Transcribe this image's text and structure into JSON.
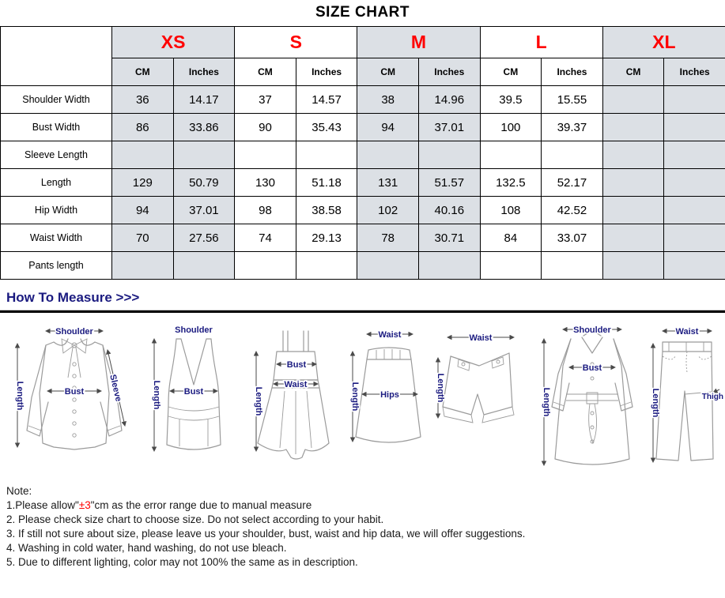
{
  "title": "SIZE CHART",
  "size_table": {
    "sizes": [
      "XS",
      "S",
      "M",
      "L",
      "XL"
    ],
    "shaded": [
      true,
      false,
      true,
      false,
      true
    ],
    "unit_headers": [
      "CM",
      "Inches"
    ],
    "rows": [
      {
        "label": "Shoulder Width",
        "values": [
          "36",
          "14.17",
          "37",
          "14.57",
          "38",
          "14.96",
          "39.5",
          "15.55",
          "",
          ""
        ]
      },
      {
        "label": "Bust Width",
        "values": [
          "86",
          "33.86",
          "90",
          "35.43",
          "94",
          "37.01",
          "100",
          "39.37",
          "",
          ""
        ]
      },
      {
        "label": "Sleeve Length",
        "values": [
          "",
          "",
          "",
          "",
          "",
          "",
          "",
          "",
          "",
          ""
        ]
      },
      {
        "label": "Length",
        "values": [
          "129",
          "50.79",
          "130",
          "51.18",
          "131",
          "51.57",
          "132.5",
          "52.17",
          "",
          ""
        ]
      },
      {
        "label": "Hip Width",
        "values": [
          "94",
          "37.01",
          "98",
          "38.58",
          "102",
          "40.16",
          "108",
          "42.52",
          "",
          ""
        ]
      },
      {
        "label": "Waist Width",
        "values": [
          "70",
          "27.56",
          "74",
          "29.13",
          "78",
          "30.71",
          "84",
          "33.07",
          "",
          ""
        ]
      },
      {
        "label": "Pants length",
        "values": [
          "",
          "",
          "",
          "",
          "",
          "",
          "",
          "",
          "",
          ""
        ]
      }
    ]
  },
  "how_to_measure": {
    "title": "How To Measure >>>"
  },
  "diagrams": [
    {
      "type": "blouse",
      "labels": {
        "shoulder": "Shoulder",
        "length": "Length",
        "bust": "Bust",
        "sleeve": "Sleeve"
      }
    },
    {
      "type": "tank-top",
      "labels": {
        "shoulder": "Shoulder",
        "length": "Length",
        "bust": "Bust"
      }
    },
    {
      "type": "dress",
      "labels": {
        "length": "Length",
        "bust": "Bust",
        "waist": "Waist"
      }
    },
    {
      "type": "skirt",
      "labels": {
        "waist": "Waist",
        "length": "Length",
        "hips": "Hips"
      }
    },
    {
      "type": "shorts",
      "labels": {
        "waist": "Waist",
        "length": "Length"
      }
    },
    {
      "type": "coat",
      "labels": {
        "shoulder": "Shoulder",
        "bust": "Bust",
        "length": "Length"
      }
    },
    {
      "type": "pants",
      "labels": {
        "waist": "Waist",
        "length": "Length",
        "thigh": "Thigh"
      }
    }
  ],
  "notes": {
    "heading": "Note:",
    "line1": {
      "prefix": "1.Please allow\"",
      "highlight": "±3",
      "suffix": "\"cm as the error range due to manual measure"
    },
    "items": [
      "2. Please check size chart to choose size. Do not select according to your habit.",
      "3. If still not sure about size, please leave us your shoulder, bust, waist and hip data, we will offer suggestions.",
      "4. Washing in cold water, hand washing, do not use bleach.",
      "5. Due to different lighting, color may not 100% the same as in description."
    ]
  },
  "colors": {
    "accent_red": "#ff0000",
    "navy": "#1b1b80",
    "cell_shade": "#dce0e5"
  }
}
